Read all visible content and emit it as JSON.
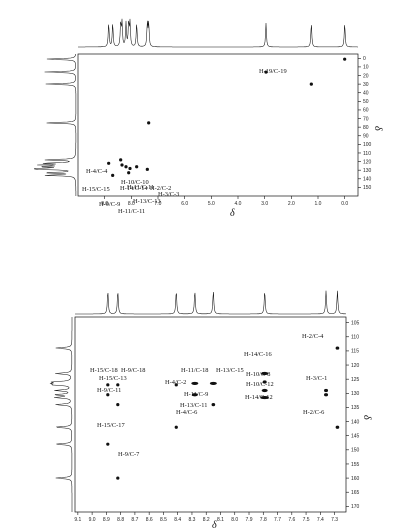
{
  "chart_data": [
    {
      "type": "scatter",
      "name": "HSQC",
      "xlabel": "δ",
      "ylabel": "δ",
      "xlim": [
        10.0,
        -0.5
      ],
      "ylim": [
        -5,
        160
      ],
      "x_ticks": [
        "9.0",
        "8.0",
        "7.0",
        "6.0",
        "5.0",
        "4.0",
        "3.0",
        "2.0",
        "1.0",
        "0.0"
      ],
      "y_ticks": [
        "0",
        "10",
        "20",
        "30",
        "40",
        "50",
        "60",
        "70",
        "80",
        "90",
        "100",
        "110",
        "120",
        "130",
        "140",
        "150"
      ],
      "points": [
        {
          "x": 8.85,
          "y": 122,
          "label": "H-15/C-15"
        },
        {
          "x": 8.4,
          "y": 118,
          "label": "H-4/C-4"
        },
        {
          "x": 8.35,
          "y": 124,
          "label": "H-10/C-10"
        },
        {
          "x": 8.2,
          "y": 126,
          "label": "H-11/C-11"
        },
        {
          "x": 8.05,
          "y": 128,
          "label": "H-14/C-14"
        },
        {
          "x": 7.8,
          "y": 126,
          "label": "H-2/C-2"
        },
        {
          "x": 7.4,
          "y": 129,
          "label": "H-3/C-3"
        },
        {
          "x": 8.1,
          "y": 133,
          "label": "H-13/C-13"
        },
        {
          "x": 8.7,
          "y": 136,
          "label": "H-9/C-9"
        },
        {
          "x": 7.35,
          "y": 75,
          "label": ""
        },
        {
          "x": 2.95,
          "y": 16,
          "label": "H-19/C-19"
        },
        {
          "x": 1.25,
          "y": 30,
          "label": ""
        },
        {
          "x": 0.0,
          "y": 1,
          "label": ""
        }
      ],
      "labels": [
        {
          "text": "H-19/C-19"
        },
        {
          "text": "H-4/C-4"
        },
        {
          "text": "H-10/C-10"
        },
        {
          "text": "H-11/C-11"
        },
        {
          "text": "H-14/C-14"
        },
        {
          "text": "H-2/C-2"
        },
        {
          "text": "H-15/C-15"
        },
        {
          "text": "H-3/C-3"
        },
        {
          "text": "H-13/C-13"
        },
        {
          "text": "H-9/C-9"
        },
        {
          "text": "H-11/C-11"
        }
      ]
    },
    {
      "type": "scatter",
      "name": "HMBC",
      "xlabel": "δ",
      "ylabel": "δ",
      "xlim": [
        9.12,
        7.22
      ],
      "ylim": [
        103,
        172
      ],
      "x_ticks": [
        "9.1",
        "9.0",
        "8.9",
        "8.8",
        "8.7",
        "8.6",
        "8.5",
        "8.4",
        "8.3",
        "8.2",
        "8.1",
        "8.0",
        "7.9",
        "7.8",
        "7.7",
        "7.6",
        "7.5",
        "7.4",
        "7.3"
      ],
      "y_ticks": [
        "105",
        "110",
        "115",
        "120",
        "125",
        "130",
        "135",
        "140",
        "145",
        "150",
        "155",
        "160",
        "165",
        "170"
      ],
      "points": [
        {
          "x": 8.89,
          "y": 127,
          "rx": 1.6,
          "label": "H-15/C-18"
        },
        {
          "x": 8.82,
          "y": 127,
          "rx": 1.6,
          "label": "H-9/C-18"
        },
        {
          "x": 8.89,
          "y": 130.5,
          "rx": 1.6,
          "label": "H-15/C-13"
        },
        {
          "x": 8.82,
          "y": 134,
          "rx": 1.6,
          "label": "H-9/C-11"
        },
        {
          "x": 8.89,
          "y": 148,
          "rx": 1.6,
          "label": "H-15/C-17"
        },
        {
          "x": 8.82,
          "y": 160,
          "rx": 1.6,
          "label": "H-9/C-7"
        },
        {
          "x": 8.41,
          "y": 127,
          "rx": 1.6,
          "label": "H-4/C-2"
        },
        {
          "x": 8.41,
          "y": 142,
          "rx": 1.6,
          "label": "H-4/C-6"
        },
        {
          "x": 8.28,
          "y": 126.5,
          "rx": 3.5,
          "label": "H-11/C-18"
        },
        {
          "x": 8.28,
          "y": 130.5,
          "rx": 3.0,
          "label": "H-11/C-9"
        },
        {
          "x": 8.15,
          "y": 126.5,
          "rx": 3.5,
          "label": "H-13/C-15"
        },
        {
          "x": 8.15,
          "y": 134,
          "rx": 1.8,
          "label": "H-13/C-11"
        },
        {
          "x": 7.79,
          "y": 123,
          "rx": 3.5,
          "label": "H-14/C-16"
        },
        {
          "x": 7.79,
          "y": 131.5,
          "rx": 4.2,
          "label": "H-14/C-12"
        },
        {
          "x": 7.79,
          "y": 129,
          "rx": 3.0,
          "label": "H-10/C-12"
        },
        {
          "x": 7.79,
          "y": 126,
          "rx": 2.0,
          "label": "H-10/C-8"
        },
        {
          "x": 7.36,
          "y": 129,
          "rx": 2.0,
          "label": "H-3/C-1"
        },
        {
          "x": 7.36,
          "y": 130.5,
          "rx": 2.0,
          "label": ""
        },
        {
          "x": 7.28,
          "y": 114,
          "rx": 1.8,
          "label": "H-2/C-4"
        },
        {
          "x": 7.28,
          "y": 142,
          "rx": 1.8,
          "label": "H-2/C-6"
        }
      ],
      "labels": [
        {
          "text": "H-2/C-4"
        },
        {
          "text": "H-14/C-16"
        },
        {
          "text": "H-15/C-18"
        },
        {
          "text": "H-9/C-18"
        },
        {
          "text": "H-11/C-18"
        },
        {
          "text": "H-13/C-15"
        },
        {
          "text": "H-10/C-8"
        },
        {
          "text": "H-15/C-13"
        },
        {
          "text": "H-4/C-2"
        },
        {
          "text": "H-3/C-1"
        },
        {
          "text": "H-10/C-12"
        },
        {
          "text": "H-9/C-11"
        },
        {
          "text": "H-11/C-9"
        },
        {
          "text": "H-14/C-12"
        },
        {
          "text": "H-13/C-11"
        },
        {
          "text": "H-4/C-6"
        },
        {
          "text": "H-2/C-6"
        },
        {
          "text": "H-15/C-17"
        },
        {
          "text": "H-9/C-7"
        }
      ]
    }
  ]
}
